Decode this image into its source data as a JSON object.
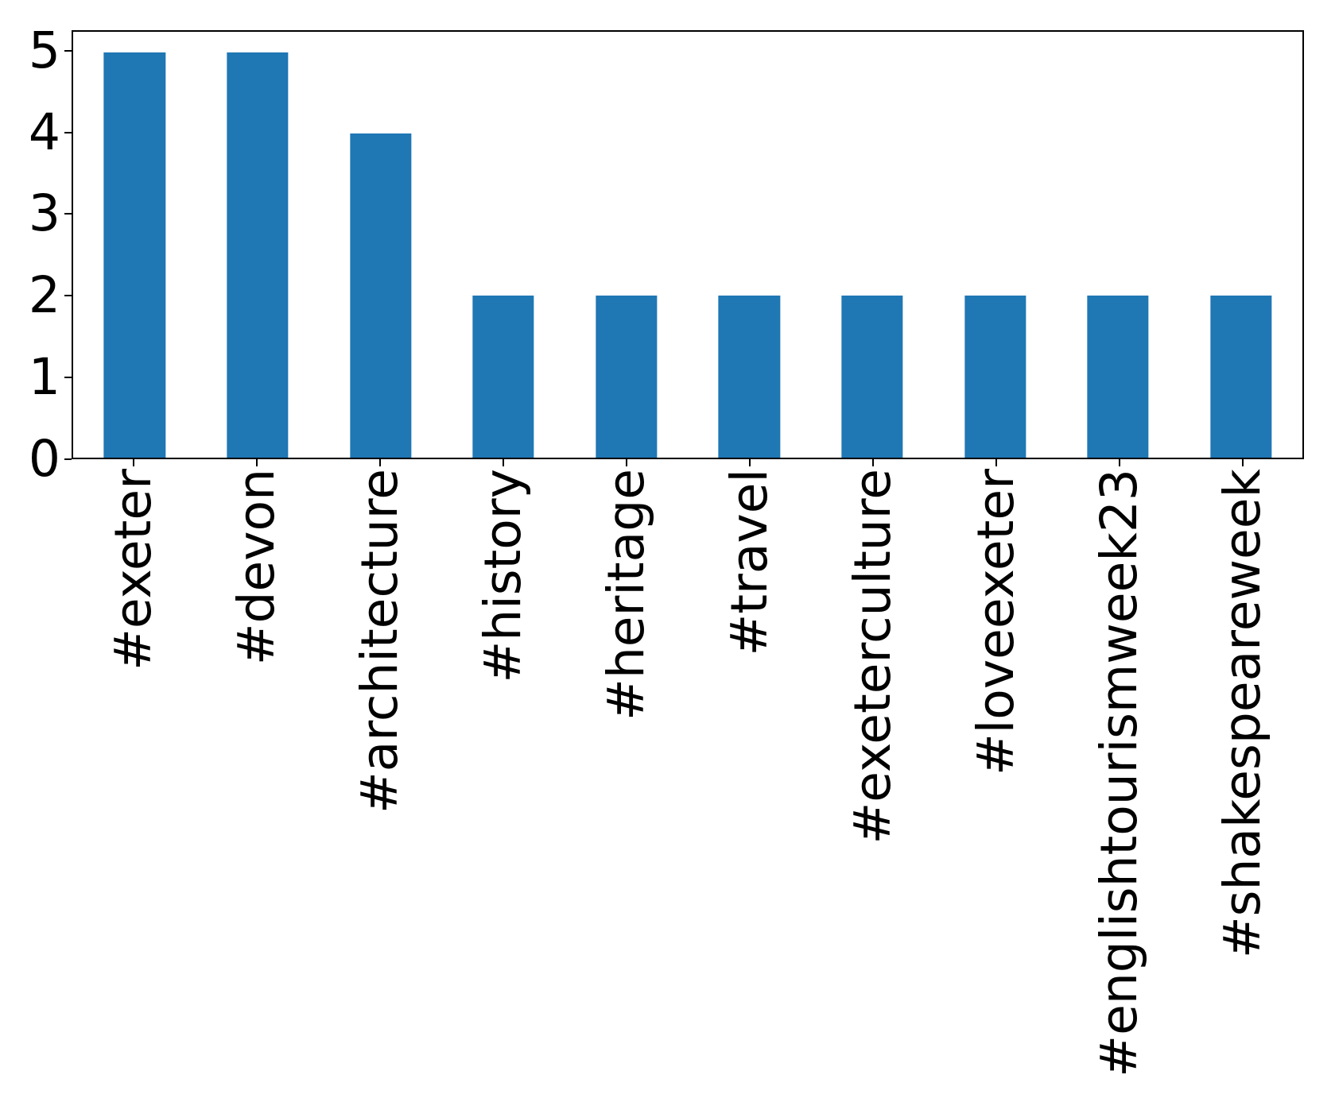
{
  "chart_data": {
    "type": "bar",
    "categories": [
      "#exeter",
      "#devon",
      "#architecture",
      "#history",
      "#heritage",
      "#travel",
      "#exeterculture",
      "#loveexeter",
      "#englishtourismweek23",
      "#shakespeareweek"
    ],
    "values": [
      5,
      5,
      4,
      2,
      2,
      2,
      2,
      2,
      2,
      2
    ],
    "title": "",
    "xlabel": "",
    "ylabel": "",
    "ytick_labels": [
      "0",
      "1",
      "2",
      "3",
      "4",
      "5"
    ],
    "ytick_values": [
      0,
      1,
      2,
      3,
      4,
      5
    ],
    "ylim": [
      0,
      5.25
    ],
    "bar_color": "#1f77b4",
    "bar_width_fraction": 0.5,
    "grid": false,
    "legend_position": "none"
  }
}
